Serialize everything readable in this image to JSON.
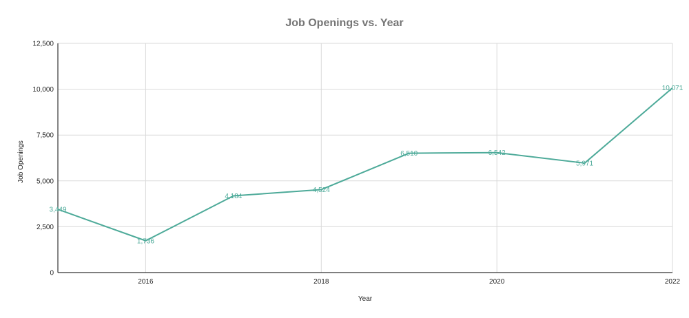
{
  "chart_data": {
    "type": "line",
    "title": "Job Openings vs. Year",
    "xlabel": "Year",
    "ylabel": "Job Openings",
    "x": [
      2015,
      2016,
      2017,
      2018,
      2019,
      2020,
      2021,
      2022
    ],
    "x_ticks": [
      "2016",
      "2018",
      "2020",
      "2022"
    ],
    "x_tick_values": [
      2016,
      2018,
      2020,
      2022
    ],
    "y_ticks": [
      "0",
      "2,500",
      "5,000",
      "7,500",
      "10,000",
      "12,500"
    ],
    "y_tick_values": [
      0,
      2500,
      5000,
      7500,
      10000,
      12500
    ],
    "xlim": [
      2015,
      2022
    ],
    "ylim": [
      0,
      12500
    ],
    "grid": true,
    "legend": "none",
    "series": [
      {
        "values": [
          3449,
          1736,
          4184,
          4524,
          6510,
          6542,
          5971,
          10071
        ],
        "data_labels": [
          "3,449",
          "1,736",
          "4,184",
          "4,524",
          "6,510",
          "6,542",
          "5,971",
          "10,071"
        ],
        "color": "#4daa99"
      }
    ],
    "colors": {
      "title": "#757575",
      "axis_text": "#222222",
      "grid": "#d9d9d9"
    }
  }
}
